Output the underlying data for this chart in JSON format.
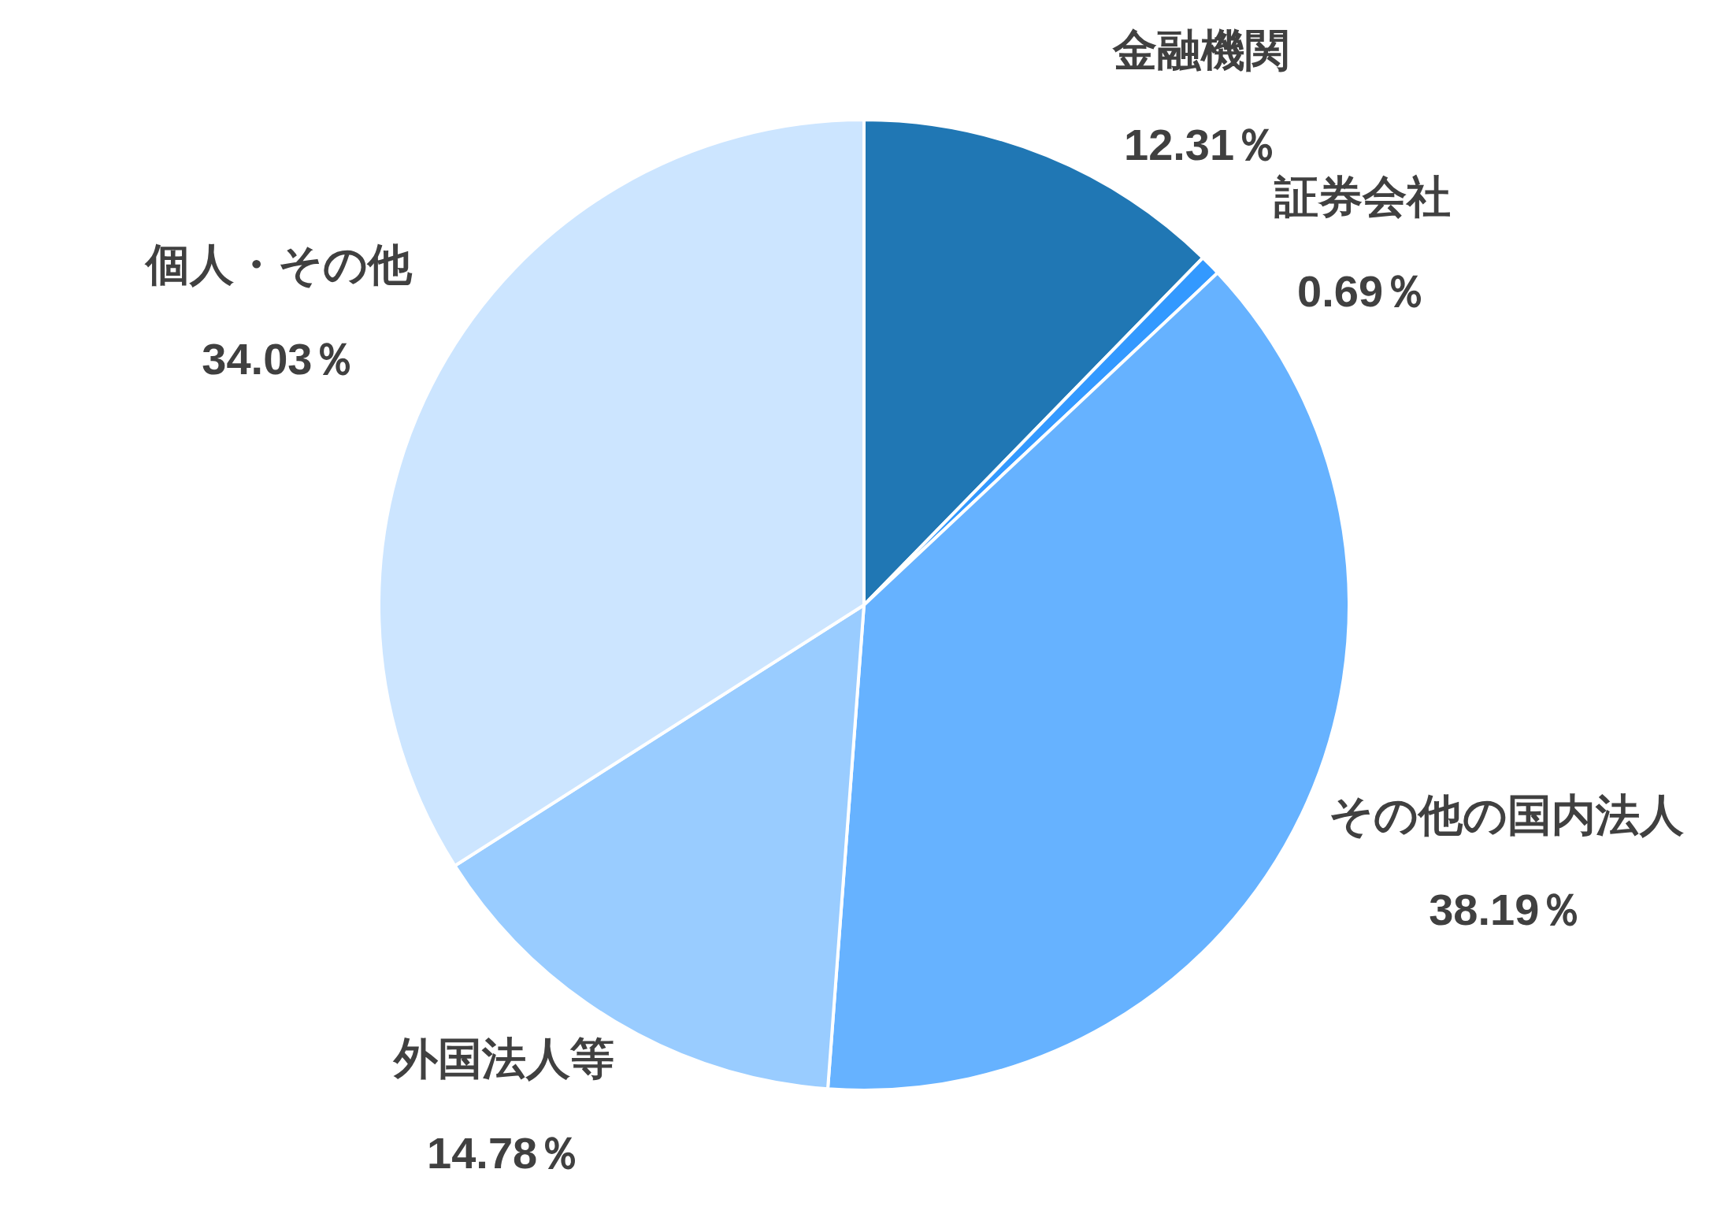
{
  "chart_data": {
    "type": "pie",
    "categories": [
      "金融機関",
      "証券会社",
      "その他の国内法人",
      "外国法人等",
      "個人・その他"
    ],
    "values": [
      12.31,
      0.69,
      38.19,
      14.78,
      34.03
    ],
    "colors": [
      "#2077b4",
      "#3399ff",
      "#66b2ff",
      "#99ccff",
      "#cce5ff"
    ],
    "value_labels": [
      "12.31％",
      "0.69％",
      "38.19％",
      "14.78％",
      "34.03％"
    ]
  }
}
